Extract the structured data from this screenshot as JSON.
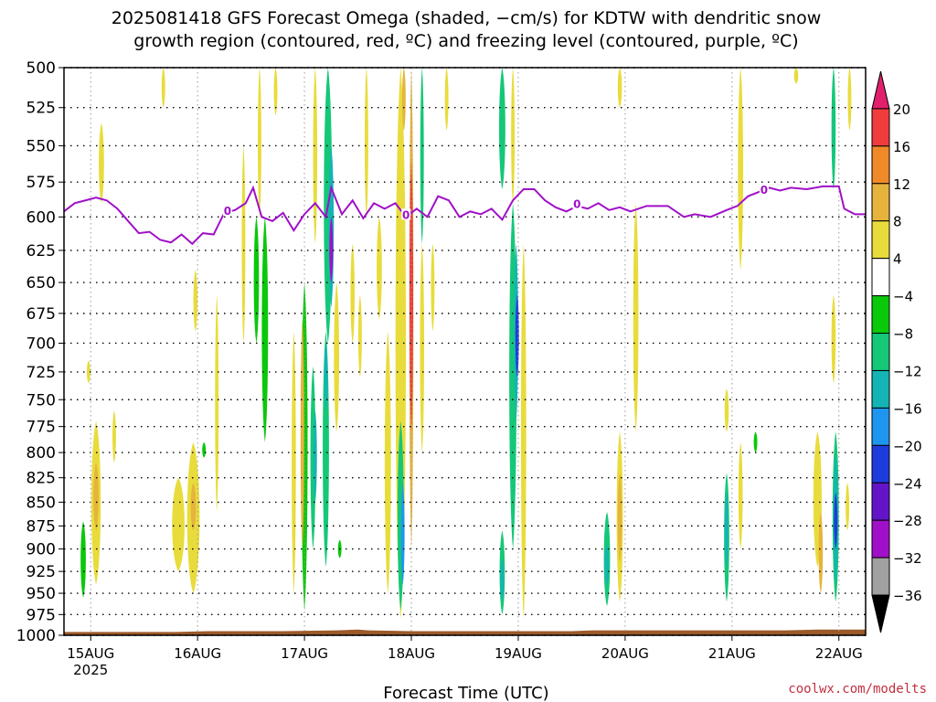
{
  "chart_data": {
    "type": "heatmap",
    "title_line1": "2025081418 GFS Forecast Omega (shaded, −cm/s) for KDTW with dendritic snow",
    "title_line2": "growth region (contoured, red, ºC) and freezing level (contoured, purple, ºC)",
    "xlabel": "Forecast Time (UTC)",
    "watermark": "coolwx.com/modelts",
    "x_ticks": [
      {
        "label": "15AUG",
        "sub": "2025",
        "day": 15.0
      },
      {
        "label": "16AUG",
        "sub": "",
        "day": 16.0
      },
      {
        "label": "17AUG",
        "sub": "",
        "day": 17.0
      },
      {
        "label": "18AUG",
        "sub": "",
        "day": 18.0
      },
      {
        "label": "19AUG",
        "sub": "",
        "day": 19.0
      },
      {
        "label": "20AUG",
        "sub": "",
        "day": 20.0
      },
      {
        "label": "21AUG",
        "sub": "",
        "day": 21.0
      },
      {
        "label": "22AUG",
        "sub": "",
        "day": 22.0
      }
    ],
    "x_range": [
      14.75,
      22.25
    ],
    "y_levels": [
      "500",
      "525",
      "550",
      "575",
      "600",
      "625",
      "650",
      "675",
      "700",
      "725",
      "750",
      "775",
      "800",
      "825",
      "850",
      "875",
      "900",
      "925",
      "950",
      "975",
      "1000"
    ],
    "y_range_hpa": [
      500,
      1000
    ],
    "y_scale": "log-pressure",
    "grid": true,
    "colorbar": {
      "labels": [
        "20",
        "16",
        "12",
        "8",
        "4",
        "−4",
        "−8",
        "−12",
        "−16",
        "−20",
        "−24",
        "−28",
        "−32",
        "−36"
      ],
      "colors": [
        "#e0206a",
        "#f03c3c",
        "#f08a28",
        "#e6b43c",
        "#e8dc3c",
        "#ffffff",
        "#0ac80a",
        "#14c878",
        "#14b4b4",
        "#1e96f0",
        "#1e3cdc",
        "#6414c8",
        "#a010c8",
        "#a0a0a0",
        "#000000"
      ]
    },
    "freezing_level_label": "0",
    "freezing_level": {
      "name": "0 ºC",
      "color": "#a010c8",
      "points": [
        [
          14.75,
          596
        ],
        [
          14.85,
          590
        ],
        [
          14.95,
          588
        ],
        [
          15.05,
          586
        ],
        [
          15.15,
          588
        ],
        [
          15.25,
          594
        ],
        [
          15.35,
          603
        ],
        [
          15.45,
          612
        ],
        [
          15.55,
          611
        ],
        [
          15.65,
          617
        ],
        [
          15.75,
          619
        ],
        [
          15.85,
          613
        ],
        [
          15.95,
          620
        ],
        [
          16.05,
          612
        ],
        [
          16.15,
          613
        ],
        [
          16.25,
          597
        ],
        [
          16.35,
          595
        ],
        [
          16.45,
          590
        ],
        [
          16.52,
          579
        ],
        [
          16.6,
          600
        ],
        [
          16.7,
          603
        ],
        [
          16.8,
          597
        ],
        [
          16.9,
          610
        ],
        [
          17.0,
          598
        ],
        [
          17.1,
          590
        ],
        [
          17.2,
          600
        ],
        [
          17.25,
          579
        ],
        [
          17.35,
          598
        ],
        [
          17.45,
          588
        ],
        [
          17.55,
          601
        ],
        [
          17.65,
          590
        ],
        [
          17.75,
          594
        ],
        [
          17.85,
          590
        ],
        [
          17.95,
          600
        ],
        [
          18.05,
          594
        ],
        [
          18.15,
          600
        ],
        [
          18.25,
          585
        ],
        [
          18.35,
          588
        ],
        [
          18.45,
          600
        ],
        [
          18.55,
          596
        ],
        [
          18.65,
          598
        ],
        [
          18.75,
          594
        ],
        [
          18.85,
          602
        ],
        [
          18.95,
          588
        ],
        [
          19.05,
          580
        ],
        [
          19.15,
          580
        ],
        [
          19.25,
          588
        ],
        [
          19.35,
          593
        ],
        [
          19.45,
          596
        ],
        [
          19.55,
          592
        ],
        [
          19.65,
          594
        ],
        [
          19.75,
          590
        ],
        [
          19.85,
          595
        ],
        [
          19.95,
          593
        ],
        [
          20.05,
          596
        ],
        [
          20.2,
          592
        ],
        [
          20.4,
          592
        ],
        [
          20.55,
          600
        ],
        [
          20.65,
          598
        ],
        [
          20.8,
          600
        ],
        [
          20.95,
          595
        ],
        [
          21.05,
          592
        ],
        [
          21.15,
          585
        ],
        [
          21.25,
          582
        ],
        [
          21.35,
          579
        ],
        [
          21.45,
          581
        ],
        [
          21.55,
          579
        ],
        [
          21.7,
          580
        ],
        [
          21.85,
          578
        ],
        [
          22.0,
          578
        ],
        [
          22.05,
          594
        ],
        [
          22.15,
          598
        ],
        [
          22.25,
          598
        ]
      ]
    },
    "surface_pressure_hpa": [
      [
        14.75,
        996
      ],
      [
        15.5,
        996
      ],
      [
        15.8,
        996
      ],
      [
        16.1,
        995
      ],
      [
        16.4,
        995
      ],
      [
        16.8,
        995
      ],
      [
        17.3,
        994
      ],
      [
        17.5,
        993
      ],
      [
        17.6,
        994
      ],
      [
        18.0,
        995
      ],
      [
        18.5,
        995
      ],
      [
        19.0,
        995
      ],
      [
        19.5,
        995
      ],
      [
        19.7,
        994
      ],
      [
        20.1,
        994
      ],
      [
        20.5,
        994
      ],
      [
        21.0,
        994
      ],
      [
        21.5,
        994
      ],
      [
        21.8,
        993
      ],
      [
        22.1,
        993
      ],
      [
        22.25,
        993
      ]
    ],
    "omega_regions": [
      {
        "day": 15.68,
        "p_top": 500,
        "p_bot": 525,
        "w": 0.03,
        "v": 6
      },
      {
        "day": 15.1,
        "p_top": 535,
        "p_bot": 590,
        "w": 0.05,
        "v": 6
      },
      {
        "day": 14.98,
        "p_top": 715,
        "p_bot": 735,
        "w": 0.015,
        "v": 6
      },
      {
        "day": 14.93,
        "p_top": 870,
        "p_bot": 955,
        "w": 0.05,
        "v": -7
      },
      {
        "day": 15.05,
        "p_top": 770,
        "p_bot": 940,
        "w": 0.09,
        "v": 6
      },
      {
        "day": 15.05,
        "p_top": 810,
        "p_bot": 880,
        "w": 0.05,
        "v": 10
      },
      {
        "day": 15.22,
        "p_top": 760,
        "p_bot": 810,
        "w": 0.02,
        "v": 6
      },
      {
        "day": 15.82,
        "p_top": 825,
        "p_bot": 925,
        "w": 0.12,
        "v": 6
      },
      {
        "day": 15.96,
        "p_top": 790,
        "p_bot": 950,
        "w": 0.12,
        "v": 6
      },
      {
        "day": 15.96,
        "p_top": 830,
        "p_bot": 880,
        "w": 0.05,
        "v": 10
      },
      {
        "day": 16.06,
        "p_top": 790,
        "p_bot": 805,
        "w": 0.03,
        "v": -7
      },
      {
        "day": 15.98,
        "p_top": 640,
        "p_bot": 690,
        "w": 0.04,
        "v": 6
      },
      {
        "day": 16.18,
        "p_top": 660,
        "p_bot": 860,
        "w": 0.03,
        "v": 6
      },
      {
        "day": 16.43,
        "p_top": 550,
        "p_bot": 700,
        "w": 0.03,
        "v": 6
      },
      {
        "day": 16.55,
        "p_top": 600,
        "p_bot": 700,
        "w": 0.05,
        "v": -7
      },
      {
        "day": 16.63,
        "p_top": 600,
        "p_bot": 790,
        "w": 0.06,
        "v": -7
      },
      {
        "day": 16.58,
        "p_top": 500,
        "p_bot": 600,
        "w": 0.03,
        "v": 6
      },
      {
        "day": 16.73,
        "p_top": 500,
        "p_bot": 530,
        "w": 0.02,
        "v": 6
      },
      {
        "day": 16.9,
        "p_top": 690,
        "p_bot": 950,
        "w": 0.04,
        "v": 6
      },
      {
        "day": 17.0,
        "p_top": 650,
        "p_bot": 970,
        "w": 0.06,
        "v": -7
      },
      {
        "day": 16.98,
        "p_top": 680,
        "p_bot": 900,
        "w": 0.025,
        "v": 10
      },
      {
        "day": 17.1,
        "p_top": 500,
        "p_bot": 620,
        "w": 0.04,
        "v": 6
      },
      {
        "day": 17.08,
        "p_top": 720,
        "p_bot": 900,
        "w": 0.05,
        "v": -8
      },
      {
        "day": 17.1,
        "p_top": 760,
        "p_bot": 850,
        "w": 0.03,
        "v": -12
      },
      {
        "day": 17.22,
        "p_top": 500,
        "p_bot": 700,
        "w": 0.08,
        "v": -8
      },
      {
        "day": 17.25,
        "p_top": 550,
        "p_bot": 670,
        "w": 0.05,
        "v": -14
      },
      {
        "day": 17.25,
        "p_top": 600,
        "p_bot": 650,
        "w": 0.025,
        "v": -28
      },
      {
        "day": 17.2,
        "p_top": 690,
        "p_bot": 920,
        "w": 0.06,
        "v": -8
      },
      {
        "day": 17.2,
        "p_top": 700,
        "p_bot": 760,
        "w": 0.03,
        "v": -13
      },
      {
        "day": 17.3,
        "p_top": 650,
        "p_bot": 780,
        "w": 0.05,
        "v": 6
      },
      {
        "day": 17.33,
        "p_top": 890,
        "p_bot": 910,
        "w": 0.01,
        "v": -7
      },
      {
        "day": 17.45,
        "p_top": 620,
        "p_bot": 700,
        "w": 0.04,
        "v": 6
      },
      {
        "day": 17.52,
        "p_top": 660,
        "p_bot": 730,
        "w": 0.02,
        "v": 6
      },
      {
        "day": 17.58,
        "p_top": 500,
        "p_bot": 600,
        "w": 0.02,
        "v": 6
      },
      {
        "day": 17.7,
        "p_top": 600,
        "p_bot": 680,
        "w": 0.05,
        "v": 6
      },
      {
        "day": 17.78,
        "p_top": 690,
        "p_bot": 950,
        "w": 0.06,
        "v": 6
      },
      {
        "day": 17.9,
        "p_top": 500,
        "p_bot": 980,
        "w": 0.1,
        "v": 6
      },
      {
        "day": 17.9,
        "p_top": 770,
        "p_bot": 970,
        "w": 0.06,
        "v": -8
      },
      {
        "day": 17.92,
        "p_top": 830,
        "p_bot": 940,
        "w": 0.03,
        "v": -16
      },
      {
        "day": 17.93,
        "p_top": 500,
        "p_bot": 540,
        "w": 0.03,
        "v": 10
      },
      {
        "day": 18.0,
        "p_top": 500,
        "p_bot": 900,
        "w": 0.04,
        "v": 10
      },
      {
        "day": 18.0,
        "p_top": 560,
        "p_bot": 780,
        "w": 0.025,
        "v": 17
      },
      {
        "day": 18.1,
        "p_top": 500,
        "p_bot": 620,
        "w": 0.03,
        "v": -8
      },
      {
        "day": 18.1,
        "p_top": 620,
        "p_bot": 800,
        "w": 0.04,
        "v": 6
      },
      {
        "day": 18.2,
        "p_top": 620,
        "p_bot": 690,
        "w": 0.03,
        "v": 6
      },
      {
        "day": 18.33,
        "p_top": 500,
        "p_bot": 540,
        "w": 0.03,
        "v": 6
      },
      {
        "day": 18.85,
        "p_top": 500,
        "p_bot": 580,
        "w": 0.06,
        "v": -8
      },
      {
        "day": 18.95,
        "p_top": 500,
        "p_bot": 590,
        "w": 0.025,
        "v": 6
      },
      {
        "day": 18.85,
        "p_top": 880,
        "p_bot": 975,
        "w": 0.05,
        "v": -8
      },
      {
        "day": 18.85,
        "p_top": 910,
        "p_bot": 960,
        "w": 0.025,
        "v": -13
      },
      {
        "day": 18.95,
        "p_top": 590,
        "p_bot": 900,
        "w": 0.07,
        "v": -8
      },
      {
        "day": 18.98,
        "p_top": 620,
        "p_bot": 770,
        "w": 0.04,
        "v": -13
      },
      {
        "day": 18.99,
        "p_top": 660,
        "p_bot": 730,
        "w": 0.02,
        "v": -22
      },
      {
        "day": 19.05,
        "p_top": 620,
        "p_bot": 980,
        "w": 0.05,
        "v": 6
      },
      {
        "day": 19.95,
        "p_top": 500,
        "p_bot": 525,
        "w": 0.04,
        "v": 6
      },
      {
        "day": 20.1,
        "p_top": 590,
        "p_bot": 780,
        "w": 0.05,
        "v": 6
      },
      {
        "day": 19.83,
        "p_top": 860,
        "p_bot": 965,
        "w": 0.06,
        "v": -8
      },
      {
        "day": 19.83,
        "p_top": 895,
        "p_bot": 940,
        "w": 0.04,
        "v": -12
      },
      {
        "day": 19.95,
        "p_top": 780,
        "p_bot": 960,
        "w": 0.06,
        "v": 6
      },
      {
        "day": 19.95,
        "p_top": 820,
        "p_bot": 915,
        "w": 0.04,
        "v": 10
      },
      {
        "day": 20.95,
        "p_top": 740,
        "p_bot": 780,
        "w": 0.04,
        "v": 6
      },
      {
        "day": 20.95,
        "p_top": 820,
        "p_bot": 960,
        "w": 0.05,
        "v": -8
      },
      {
        "day": 20.95,
        "p_top": 840,
        "p_bot": 920,
        "w": 0.03,
        "v": -12
      },
      {
        "day": 21.08,
        "p_top": 500,
        "p_bot": 640,
        "w": 0.05,
        "v": 6
      },
      {
        "day": 21.08,
        "p_top": 790,
        "p_bot": 900,
        "w": 0.04,
        "v": 6
      },
      {
        "day": 21.22,
        "p_top": 780,
        "p_bot": 800,
        "w": 0.03,
        "v": -7
      },
      {
        "day": 21.6,
        "p_top": 500,
        "p_bot": 510,
        "w": 0.04,
        "v": 6
      },
      {
        "day": 21.8,
        "p_top": 780,
        "p_bot": 920,
        "w": 0.08,
        "v": 6
      },
      {
        "day": 21.83,
        "p_top": 860,
        "p_bot": 950,
        "w": 0.04,
        "v": 10
      },
      {
        "day": 21.95,
        "p_top": 500,
        "p_bot": 580,
        "w": 0.04,
        "v": -8
      },
      {
        "day": 21.95,
        "p_top": 660,
        "p_bot": 735,
        "w": 0.04,
        "v": 6
      },
      {
        "day": 21.97,
        "p_top": 780,
        "p_bot": 960,
        "w": 0.06,
        "v": -8
      },
      {
        "day": 21.97,
        "p_top": 800,
        "p_bot": 940,
        "w": 0.04,
        "v": -14
      },
      {
        "day": 21.97,
        "p_top": 840,
        "p_bot": 900,
        "w": 0.025,
        "v": -22
      },
      {
        "day": 22.1,
        "p_top": 500,
        "p_bot": 540,
        "w": 0.03,
        "v": 6
      },
      {
        "day": 22.08,
        "p_top": 830,
        "p_bot": 880,
        "w": 0.03,
        "v": 6
      }
    ]
  }
}
